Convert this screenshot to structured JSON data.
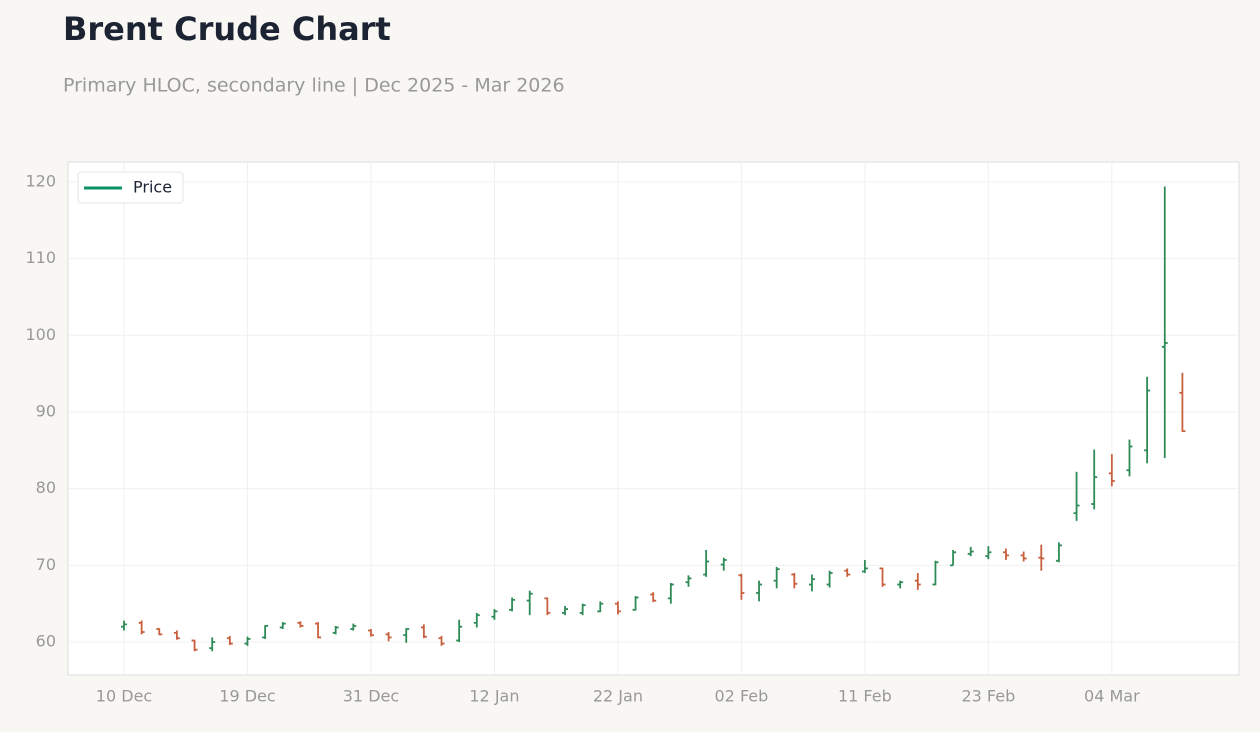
{
  "chart_data": {
    "type": "ohlc",
    "title": "Brent Crude Chart",
    "subtitle": "Primary HLOC, secondary line | Dec 2025 - Mar 2026",
    "categories": [
      "10 Dec",
      null,
      null,
      null,
      null,
      null,
      null,
      "19 Dec",
      null,
      null,
      null,
      null,
      null,
      null,
      "31 Dec",
      null,
      null,
      null,
      null,
      null,
      null,
      "12 Jan",
      null,
      null,
      null,
      null,
      null,
      null,
      "22 Jan",
      null,
      null,
      null,
      null,
      null,
      null,
      "02 Feb",
      null,
      null,
      null,
      null,
      null,
      null,
      "11 Feb",
      null,
      null,
      null,
      null,
      null,
      null,
      "23 Feb",
      null,
      null,
      null,
      null,
      null,
      null,
      "04 Mar",
      null,
      null,
      null,
      null
    ],
    "series": [
      {
        "name": "Price",
        "color": "#0a9464",
        "up_color": "#2e8b57",
        "down_color": "#c8603f",
        "open": [
          62.0,
          62.5,
          61.7,
          61.2,
          60.2,
          59.2,
          60.5,
          59.8,
          60.6,
          61.9,
          62.5,
          62.4,
          61.2,
          61.7,
          61.5,
          61.0,
          60.9,
          61.9,
          60.5,
          60.2,
          62.5,
          63.3,
          64.2,
          65.4,
          65.7,
          63.8,
          63.8,
          64.0,
          65.0,
          64.2,
          66.2,
          65.7,
          67.8,
          68.8,
          70.1,
          68.7,
          66.4,
          68.0,
          68.8,
          67.5,
          67.5,
          69.3,
          69.2,
          69.6,
          67.5,
          68.0,
          67.5,
          70.0,
          71.5,
          71.2,
          71.7,
          71.3,
          71.0,
          70.6,
          76.8,
          78.0,
          82.0,
          82.4,
          85.0,
          98.5,
          92.5
        ],
        "high": [
          62.8,
          62.8,
          61.8,
          61.5,
          60.3,
          60.6,
          60.8,
          60.7,
          62.2,
          62.6,
          62.7,
          62.6,
          62.1,
          62.4,
          61.7,
          61.3,
          61.8,
          62.3,
          60.8,
          62.9,
          63.8,
          64.3,
          65.8,
          66.7,
          65.8,
          64.7,
          65.0,
          65.3,
          65.3,
          66.0,
          66.5,
          67.7,
          68.7,
          72.0,
          71.0,
          68.9,
          68.0,
          69.8,
          69.0,
          68.8,
          69.3,
          69.6,
          70.7,
          69.7,
          68.0,
          69.0,
          70.6,
          72.0,
          72.4,
          72.5,
          72.2,
          71.8,
          72.7,
          73.0,
          82.2,
          85.1,
          84.5,
          86.4,
          94.6,
          119.4,
          95.1
        ],
        "low": [
          61.5,
          61.0,
          60.9,
          60.3,
          58.8,
          58.8,
          59.6,
          59.5,
          60.4,
          61.7,
          61.9,
          60.5,
          61.0,
          61.5,
          60.7,
          60.1,
          59.9,
          60.5,
          59.5,
          60.0,
          61.9,
          62.9,
          64.0,
          63.5,
          63.5,
          63.5,
          63.5,
          63.9,
          63.6,
          64.1,
          65.2,
          65.0,
          67.2,
          68.5,
          69.3,
          65.5,
          65.3,
          67.0,
          67.0,
          66.6,
          67.1,
          68.5,
          69.0,
          67.2,
          67.0,
          66.8,
          67.4,
          70.0,
          71.2,
          70.8,
          70.7,
          70.5,
          69.3,
          70.4,
          75.8,
          77.3,
          80.3,
          81.6,
          83.3,
          84.0,
          87.4
        ],
        "close": [
          62.3,
          61.3,
          61.0,
          60.5,
          59.0,
          60.0,
          59.8,
          60.4,
          62.1,
          62.4,
          62.1,
          60.6,
          61.9,
          62.1,
          60.9,
          60.6,
          61.7,
          60.7,
          59.8,
          62.0,
          63.5,
          64.0,
          65.5,
          66.3,
          63.8,
          64.3,
          64.8,
          65.0,
          64.0,
          65.8,
          65.4,
          67.5,
          68.3,
          70.5,
          70.7,
          66.4,
          67.5,
          69.5,
          67.6,
          68.2,
          69.0,
          68.8,
          69.6,
          67.5,
          67.8,
          67.5,
          70.4,
          71.7,
          71.8,
          71.7,
          71.3,
          70.9,
          70.9,
          72.6,
          77.8,
          81.5,
          81.0,
          85.5,
          92.8,
          99.0,
          87.5
        ]
      }
    ],
    "ylim": [
      55.7,
      122.6
    ],
    "yticks": [
      60,
      70,
      80,
      90,
      100,
      110,
      120
    ],
    "grid": true,
    "legend": "upper left"
  }
}
